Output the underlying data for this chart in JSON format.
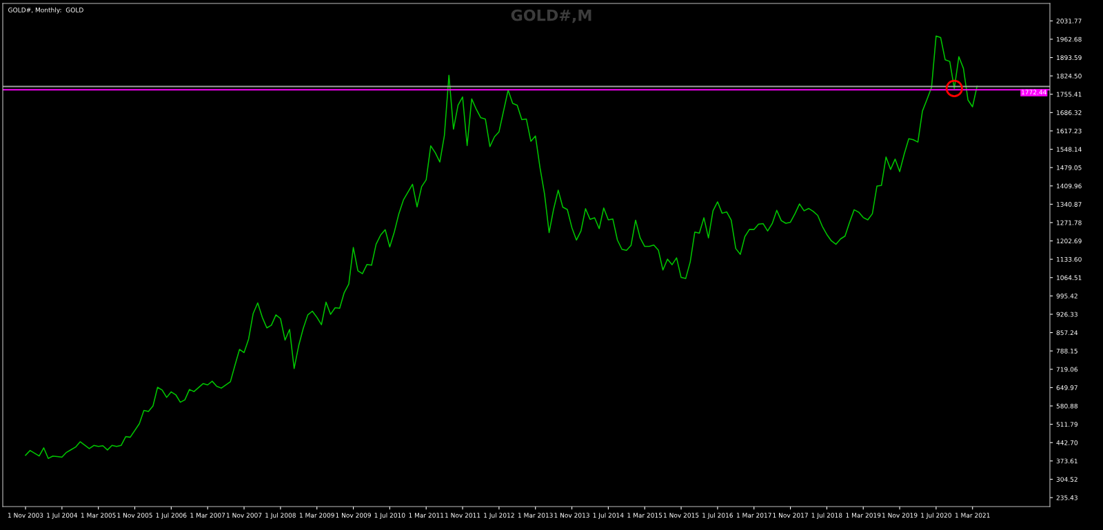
{
  "chart_data": {
    "type": "line",
    "title": "GOLD#,M",
    "subtitle": "GOLD#, Monthly:  GOLD",
    "x": [
      "2003-11",
      "2003-12",
      "2004-02",
      "2004-03",
      "2004-04",
      "2004-05",
      "2004-07",
      "2004-08",
      "2004-09",
      "2004-10",
      "2004-11",
      "2005-01",
      "2005-02",
      "2005-03",
      "2005-04",
      "2005-05",
      "2005-06",
      "2005-07",
      "2005-08",
      "2005-09",
      "2005-10",
      "2005-12",
      "2006-01",
      "2006-02",
      "2006-03",
      "2006-04",
      "2006-05",
      "2006-06",
      "2006-07",
      "2006-08",
      "2006-09",
      "2006-10",
      "2006-11",
      "2006-12",
      "2007-02",
      "2007-03",
      "2007-04",
      "2007-05",
      "2007-06",
      "2007-08",
      "2007-09",
      "2007-10",
      "2007-11",
      "2007-12",
      "2008-01",
      "2008-02",
      "2008-03",
      "2008-04",
      "2008-05",
      "2008-06",
      "2008-07",
      "2008-08",
      "2008-09",
      "2008-10",
      "2008-11",
      "2008-12",
      "2009-01",
      "2009-02",
      "2009-03",
      "2009-04",
      "2009-05",
      "2009-06",
      "2009-07",
      "2009-08",
      "2009-09",
      "2009-10",
      "2009-11",
      "2009-12",
      "2010-01",
      "2010-02",
      "2010-03",
      "2010-04",
      "2010-05",
      "2010-06",
      "2010-07",
      "2010-08",
      "2010-09",
      "2010-10",
      "2010-12",
      "2011-01",
      "2011-02",
      "2011-03",
      "2011-04",
      "2011-05",
      "2011-06",
      "2011-07",
      "2011-08",
      "2011-09",
      "2011-10",
      "2011-11",
      "2011-12",
      "2012-01",
      "2012-02",
      "2012-03",
      "2012-04",
      "2012-05",
      "2012-06",
      "2012-07",
      "2012-09",
      "2012-10",
      "2012-11",
      "2012-12",
      "2013-01",
      "2013-02",
      "2013-03",
      "2013-04",
      "2013-05",
      "2013-06",
      "2013-07",
      "2013-08",
      "2013-09",
      "2013-10",
      "2013-11",
      "2013-12",
      "2014-01",
      "2014-02",
      "2014-03",
      "2014-04",
      "2014-05",
      "2014-06",
      "2014-07",
      "2014-08",
      "2014-09",
      "2014-10",
      "2014-11",
      "2014-12",
      "2015-01",
      "2015-02",
      "2015-03",
      "2015-04",
      "2015-05",
      "2015-06",
      "2015-07",
      "2015-08",
      "2015-09",
      "2015-10",
      "2015-11",
      "2015-12",
      "2016-01",
      "2016-02",
      "2016-03",
      "2016-04",
      "2016-05",
      "2016-06",
      "2016-07",
      "2016-08",
      "2016-09",
      "2016-10",
      "2016-11",
      "2016-12",
      "2017-01",
      "2017-02",
      "2017-03",
      "2017-04",
      "2017-05",
      "2017-06",
      "2017-07",
      "2017-08",
      "2017-09",
      "2017-10",
      "2017-11",
      "2017-12",
      "2018-01",
      "2018-02",
      "2018-03",
      "2018-04",
      "2018-05",
      "2018-06",
      "2018-07",
      "2018-08",
      "2018-09",
      "2018-10",
      "2018-11",
      "2018-12",
      "2019-01",
      "2019-02",
      "2019-03",
      "2019-04",
      "2019-05",
      "2019-06",
      "2019-07",
      "2019-08",
      "2019-09",
      "2019-10",
      "2019-11",
      "2019-12",
      "2020-01",
      "2020-02",
      "2020-03",
      "2020-04",
      "2020-05",
      "2020-06",
      "2020-07",
      "2020-08",
      "2020-09",
      "2020-10",
      "2020-11",
      "2020-12",
      "2021-01",
      "2021-02",
      "2021-03",
      "2021-04"
    ],
    "series": [
      {
        "color": "#00c800",
        "values": [
          395,
          413,
          392,
          423,
          383,
          392,
          388,
          406,
          416,
          426,
          446,
          420,
          432,
          428,
          431,
          415,
          432,
          428,
          432,
          465,
          463,
          514,
          564,
          560,
          581,
          651,
          641,
          613,
          634,
          623,
          595,
          604,
          643,
          635,
          665,
          660,
          674,
          655,
          648,
          672,
          734,
          794,
          782,
          833,
          929,
          969,
          915,
          875,
          885,
          924,
          910,
          829,
          869,
          722,
          808,
          873,
          924,
          938,
          915,
          887,
          972,
          926,
          951,
          949,
          1008,
          1040,
          1178,
          1090,
          1079,
          1114,
          1111,
          1190,
          1225,
          1245,
          1180,
          1236,
          1305,
          1357,
          1416,
          1331,
          1407,
          1433,
          1561,
          1535,
          1500,
          1600,
          1827,
          1624,
          1714,
          1745,
          1562,
          1738,
          1699,
          1667,
          1662,
          1558,
          1595,
          1614,
          1771,
          1721,
          1714,
          1660,
          1662,
          1578,
          1598,
          1479,
          1379,
          1234,
          1323,
          1394,
          1330,
          1321,
          1253,
          1206,
          1240,
          1324,
          1284,
          1290,
          1249,
          1327,
          1282,
          1285,
          1206,
          1171,
          1167,
          1186,
          1281,
          1214,
          1182,
          1182,
          1187,
          1168,
          1093,
          1134,
          1113,
          1139,
          1065,
          1061,
          1124,
          1236,
          1232,
          1290,
          1214,
          1316,
          1350,
          1307,
          1312,
          1281,
          1174,
          1152,
          1219,
          1246,
          1246,
          1266,
          1268,
          1240,
          1268,
          1318,
          1279,
          1269,
          1273,
          1305,
          1342,
          1316,
          1325,
          1314,
          1299,
          1258,
          1227,
          1203,
          1190,
          1210,
          1221,
          1273,
          1320,
          1311,
          1291,
          1282,
          1305,
          1409,
          1412,
          1519,
          1472,
          1511,
          1464,
          1530,
          1588,
          1584,
          1575,
          1692,
          1736,
          1781,
          1975,
          1969,
          1885,
          1879,
          1777,
          1897,
          1853,
          1734,
          1708,
          1786
        ]
      },
      {
        "type": "scatter",
        "color": "#ff0000",
        "marker": "circle",
        "x": [
          "2020-11"
        ],
        "values": [
          1777
        ]
      }
    ],
    "xlim": [
      "2003-06",
      "2022-08"
    ],
    "xticks": [
      {
        "value": "2003-11",
        "label": "1 Nov 2003"
      },
      {
        "value": "2004-07",
        "label": "1 Jul 2004"
      },
      {
        "value": "2005-03",
        "label": "1 Mar 2005"
      },
      {
        "value": "2005-11",
        "label": "1 Nov 2005"
      },
      {
        "value": "2006-07",
        "label": "1 Jul 2006"
      },
      {
        "value": "2007-03",
        "label": "1 Mar 2007"
      },
      {
        "value": "2007-11",
        "label": "1 Nov 2007"
      },
      {
        "value": "2008-07",
        "label": "1 Jul 2008"
      },
      {
        "value": "2009-03",
        "label": "1 Mar 2009"
      },
      {
        "value": "2009-11",
        "label": "1 Nov 2009"
      },
      {
        "value": "2010-07",
        "label": "1 Jul 2010"
      },
      {
        "value": "2011-03",
        "label": "1 Mar 2011"
      },
      {
        "value": "2011-11",
        "label": "1 Nov 2011"
      },
      {
        "value": "2012-07",
        "label": "1 Jul 2012"
      },
      {
        "value": "2013-03",
        "label": "1 Mar 2013"
      },
      {
        "value": "2013-11",
        "label": "1 Nov 2013"
      },
      {
        "value": "2014-07",
        "label": "1 Jul 2014"
      },
      {
        "value": "2015-03",
        "label": "1 Mar 2015"
      },
      {
        "value": "2015-11",
        "label": "1 Nov 2015"
      },
      {
        "value": "2016-07",
        "label": "1 Jul 2016"
      },
      {
        "value": "2017-03",
        "label": "1 Mar 2017"
      },
      {
        "value": "2017-11",
        "label": "1 Nov 2017"
      },
      {
        "value": "2018-07",
        "label": "1 Jul 2018"
      },
      {
        "value": "2019-03",
        "label": "1 Mar 2019"
      },
      {
        "value": "2019-11",
        "label": "1 Nov 2019"
      },
      {
        "value": "2020-07",
        "label": "1 Jul 2020"
      },
      {
        "value": "2021-03",
        "label": "1 Mar 2021"
      }
    ],
    "ylim": [
      201.7,
      2097.5
    ],
    "yticks": [
      235.43,
      304.52,
      373.61,
      {
        "value": 442.7,
        "label": "442.70"
      },
      511.79,
      580.88,
      649.97,
      719.06,
      788.15,
      857.24,
      926.33,
      995.42,
      1064.51,
      {
        "value": 1133.6,
        "label": "1133.60"
      },
      1202.69,
      1271.78,
      1340.87,
      1409.96,
      1479.05,
      1548.14,
      1617.23,
      1686.32,
      1755.41,
      {
        "value": 1824.5,
        "label": "1824.50"
      },
      1893.59,
      1962.68,
      2031.77
    ],
    "ref_lines": [
      {
        "axis": "y",
        "value": 1784.5,
        "color": "#a0a0a0"
      },
      {
        "axis": "y",
        "value": 1772.44,
        "label": "1772.44",
        "color": "#ff00ff"
      }
    ],
    "grid": false
  }
}
